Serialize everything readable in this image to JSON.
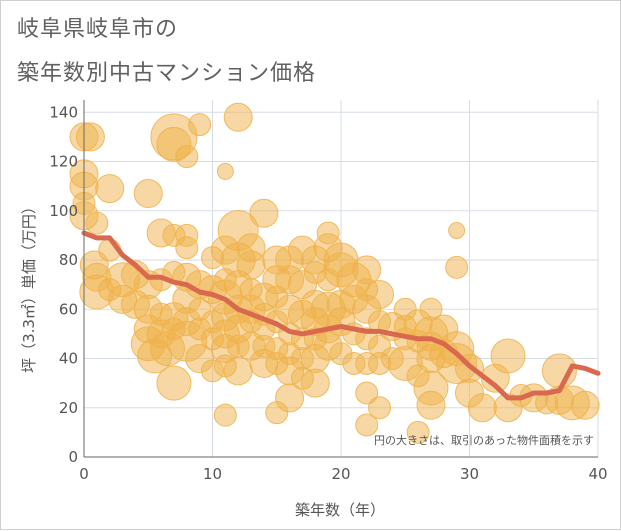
{
  "page_title": {
    "line1": "岐阜県岐阜市の",
    "line2": "築年数別中古マンション価格"
  },
  "chart_data": {
    "type": "scatter",
    "title": "岐阜県岐阜市の築年数別中古マンション価格",
    "xlabel": "築年数（年）",
    "ylabel": "坪（3.3㎡）単価（万円）",
    "xlim": [
      0,
      40
    ],
    "ylim": [
      0,
      145
    ],
    "xticks": [
      0,
      10,
      20,
      30,
      40
    ],
    "yticks": [
      0,
      20,
      40,
      60,
      80,
      100,
      120,
      140
    ],
    "grid": true,
    "note": "円の大きさは、取引のあった物件面積を示す",
    "bubble_color": "#f0b24a",
    "line_color": "#d9694e",
    "series": [
      {
        "type": "bubble",
        "points": [
          [
            0,
            130,
            3
          ],
          [
            0.5,
            130,
            3
          ],
          [
            0,
            115,
            3
          ],
          [
            0,
            110,
            3
          ],
          [
            0,
            103,
            2
          ],
          [
            0,
            98,
            3
          ],
          [
            1,
            95,
            2
          ],
          [
            2,
            109,
            3
          ],
          [
            0.8,
            78,
            3
          ],
          [
            1,
            73,
            3
          ],
          [
            1,
            67,
            4
          ],
          [
            2,
            84,
            2
          ],
          [
            2,
            68,
            2
          ],
          [
            3,
            72,
            4
          ],
          [
            3,
            64,
            3
          ],
          [
            4,
            74,
            3
          ],
          [
            4,
            62,
            3
          ],
          [
            5,
            107,
            3
          ],
          [
            5,
            70,
            3
          ],
          [
            5,
            60,
            3
          ],
          [
            5,
            52,
            3
          ],
          [
            5,
            46,
            4
          ],
          [
            5.5,
            41,
            4
          ],
          [
            6,
            91,
            3
          ],
          [
            6,
            72,
            2
          ],
          [
            6,
            58,
            2
          ],
          [
            6,
            50,
            3
          ],
          [
            6.5,
            44,
            4
          ],
          [
            7,
            130,
            6
          ],
          [
            7,
            127,
            4
          ],
          [
            7,
            90,
            2
          ],
          [
            7,
            75,
            2
          ],
          [
            7,
            57,
            3
          ],
          [
            7,
            52,
            2
          ],
          [
            7,
            30,
            4
          ],
          [
            8,
            122,
            2
          ],
          [
            8,
            90,
            2
          ],
          [
            8,
            85,
            2
          ],
          [
            8,
            73,
            3
          ],
          [
            8,
            64,
            3
          ],
          [
            8,
            55,
            3
          ],
          [
            8,
            47,
            5
          ],
          [
            9,
            135,
            2
          ],
          [
            9,
            70,
            3
          ],
          [
            9,
            60,
            2
          ],
          [
            9,
            52,
            2
          ],
          [
            9,
            40,
            3
          ],
          [
            10,
            81,
            2
          ],
          [
            10,
            68,
            3
          ],
          [
            10,
            55,
            2
          ],
          [
            10,
            48,
            2
          ],
          [
            10,
            35,
            2
          ],
          [
            11,
            116,
            1
          ],
          [
            11,
            84,
            3
          ],
          [
            11,
            72,
            2
          ],
          [
            11,
            65,
            4
          ],
          [
            11,
            57,
            3
          ],
          [
            11,
            50,
            3
          ],
          [
            11,
            44,
            3
          ],
          [
            11,
            37,
            2
          ],
          [
            11,
            17,
            2
          ],
          [
            12,
            138,
            3
          ],
          [
            12,
            92,
            5
          ],
          [
            12,
            80,
            4
          ],
          [
            12,
            70,
            3
          ],
          [
            12,
            60,
            3
          ],
          [
            12,
            52,
            3
          ],
          [
            12,
            45,
            2
          ],
          [
            12,
            35,
            3
          ],
          [
            13,
            85,
            3
          ],
          [
            13,
            78,
            3
          ],
          [
            13,
            68,
            2
          ],
          [
            13,
            60,
            3
          ],
          [
            13,
            55,
            2
          ],
          [
            13,
            45,
            3
          ],
          [
            14,
            99,
            3
          ],
          [
            14,
            65,
            3
          ],
          [
            14,
            58,
            2
          ],
          [
            14,
            52,
            2
          ],
          [
            14,
            45,
            2
          ],
          [
            14,
            38,
            3
          ],
          [
            15,
            80,
            3
          ],
          [
            15,
            72,
            3
          ],
          [
            15,
            65,
            2
          ],
          [
            15,
            55,
            2
          ],
          [
            15,
            44,
            2
          ],
          [
            15,
            38,
            2
          ],
          [
            15,
            18,
            2
          ],
          [
            16,
            80,
            3
          ],
          [
            16,
            72,
            3
          ],
          [
            16,
            60,
            3
          ],
          [
            16,
            50,
            2
          ],
          [
            16,
            42,
            2
          ],
          [
            16,
            35,
            3
          ],
          [
            16,
            24,
            3
          ],
          [
            17,
            84,
            3
          ],
          [
            17,
            70,
            3
          ],
          [
            17,
            58,
            3
          ],
          [
            17,
            48,
            2
          ],
          [
            17,
            40,
            2
          ],
          [
            17,
            32,
            2
          ],
          [
            18,
            80,
            3
          ],
          [
            18,
            75,
            2
          ],
          [
            18,
            62,
            3
          ],
          [
            18,
            55,
            3
          ],
          [
            18,
            48,
            2
          ],
          [
            18,
            40,
            3
          ],
          [
            18,
            30,
            3
          ],
          [
            19,
            91,
            2
          ],
          [
            19,
            85,
            3
          ],
          [
            19,
            72,
            2
          ],
          [
            19,
            60,
            4
          ],
          [
            19,
            52,
            3
          ],
          [
            19,
            45,
            3
          ],
          [
            20,
            80,
            4
          ],
          [
            20,
            76,
            4
          ],
          [
            20,
            62,
            3
          ],
          [
            20,
            55,
            3
          ],
          [
            20,
            42,
            2
          ],
          [
            21,
            72,
            4
          ],
          [
            21,
            64,
            3
          ],
          [
            21,
            50,
            2
          ],
          [
            21,
            38,
            2
          ],
          [
            22,
            76,
            3
          ],
          [
            22,
            68,
            2
          ],
          [
            22,
            60,
            3
          ],
          [
            22,
            48,
            2
          ],
          [
            22,
            38,
            2
          ],
          [
            22,
            26,
            2
          ],
          [
            22,
            13,
            2
          ],
          [
            23,
            66,
            3
          ],
          [
            23,
            55,
            2
          ],
          [
            23,
            45,
            2
          ],
          [
            23,
            38,
            2
          ],
          [
            23,
            20,
            2
          ],
          [
            24,
            53,
            3
          ],
          [
            24,
            40,
            2
          ],
          [
            25,
            60,
            2
          ],
          [
            25,
            53,
            2
          ],
          [
            25,
            48,
            2
          ],
          [
            25,
            38,
            4
          ],
          [
            26,
            54,
            3
          ],
          [
            26,
            47,
            2
          ],
          [
            26,
            33,
            2
          ],
          [
            26,
            10,
            2
          ],
          [
            27,
            60,
            2
          ],
          [
            27,
            50,
            4
          ],
          [
            27,
            45,
            3
          ],
          [
            27,
            40,
            3
          ],
          [
            27,
            28,
            4
          ],
          [
            27,
            21,
            3
          ],
          [
            28,
            52,
            3
          ],
          [
            28,
            42,
            3
          ],
          [
            29,
            92,
            1
          ],
          [
            29,
            77,
            2
          ],
          [
            29,
            44,
            4
          ],
          [
            29,
            38,
            5
          ],
          [
            30,
            36,
            3
          ],
          [
            30,
            26,
            3
          ],
          [
            31,
            20,
            3
          ],
          [
            32,
            32,
            3
          ],
          [
            33,
            41,
            4
          ],
          [
            33,
            20,
            3
          ],
          [
            34,
            25,
            2
          ],
          [
            35,
            24,
            3
          ],
          [
            36,
            22,
            2
          ],
          [
            37,
            35,
            4
          ],
          [
            37,
            23,
            3
          ],
          [
            38,
            22,
            4
          ],
          [
            39,
            21,
            3
          ]
        ]
      },
      {
        "type": "line",
        "points": [
          [
            0,
            91
          ],
          [
            1,
            89
          ],
          [
            2,
            89
          ],
          [
            3,
            82
          ],
          [
            4,
            78
          ],
          [
            5,
            73
          ],
          [
            6,
            73
          ],
          [
            7,
            71
          ],
          [
            8,
            70
          ],
          [
            9,
            67
          ],
          [
            10,
            66
          ],
          [
            11,
            64
          ],
          [
            12,
            60
          ],
          [
            13,
            58
          ],
          [
            14,
            56
          ],
          [
            15,
            54
          ],
          [
            16,
            51
          ],
          [
            17,
            50
          ],
          [
            18,
            51
          ],
          [
            19,
            52
          ],
          [
            20,
            53
          ],
          [
            21,
            52
          ],
          [
            22,
            51
          ],
          [
            23,
            51
          ],
          [
            24,
            50
          ],
          [
            25,
            49
          ],
          [
            26,
            48
          ],
          [
            27,
            48
          ],
          [
            28,
            46
          ],
          [
            29,
            42
          ],
          [
            30,
            37
          ],
          [
            31,
            33
          ],
          [
            32,
            29
          ],
          [
            33,
            24
          ],
          [
            34,
            24
          ],
          [
            35,
            26
          ],
          [
            36,
            26
          ],
          [
            37,
            27
          ],
          [
            38,
            37
          ],
          [
            39,
            36
          ],
          [
            40,
            34
          ]
        ]
      }
    ]
  }
}
